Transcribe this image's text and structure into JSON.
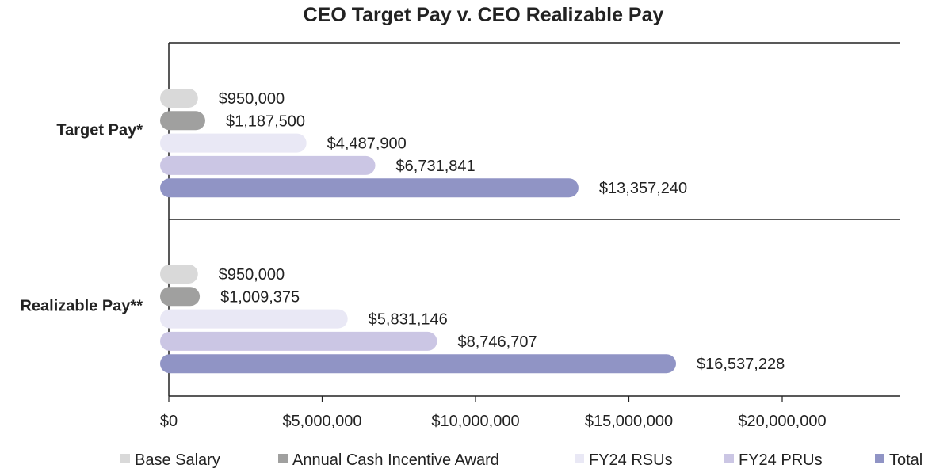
{
  "chart_data": {
    "type": "bar",
    "orientation": "horizontal",
    "title": "CEO Target Pay v. CEO Realizable Pay",
    "xlabel": "",
    "ylabel": "",
    "xlim": [
      0,
      24000000
    ],
    "x_ticks": [
      0,
      5000000,
      10000000,
      15000000,
      20000000
    ],
    "x_tick_labels": [
      "$0",
      "$5,000,000",
      "$10,000,000",
      "$15,000,000",
      "$20,000,000"
    ],
    "grid": false,
    "legend_position": "bottom",
    "categories": [
      "Target Pay*",
      "Realizable Pay**"
    ],
    "series": [
      {
        "name": "Base Salary",
        "color": "#d9d9d9",
        "values": [
          950000,
          950000
        ],
        "labels": [
          "$950,000",
          "$950,000"
        ]
      },
      {
        "name": "Annual Cash Incentive Award",
        "color": "#a0a09f",
        "values": [
          1187500,
          1009375
        ],
        "labels": [
          "$1,187,500",
          "$1,009,375"
        ]
      },
      {
        "name": "FY24 RSUs",
        "color": "#e9e8f5",
        "values": [
          4487900,
          5831146
        ],
        "labels": [
          "$4,487,900",
          "$5,831,146"
        ]
      },
      {
        "name": "FY24 PRUs",
        "color": "#cbc6e4",
        "values": [
          6731841,
          8746707
        ],
        "labels": [
          "$6,731,841",
          "$8,746,707"
        ]
      },
      {
        "name": "Total",
        "color": "#9094c5",
        "values": [
          13357240,
          16537228
        ],
        "labels": [
          "$13,357,240",
          "$16,537,228"
        ]
      }
    ]
  }
}
